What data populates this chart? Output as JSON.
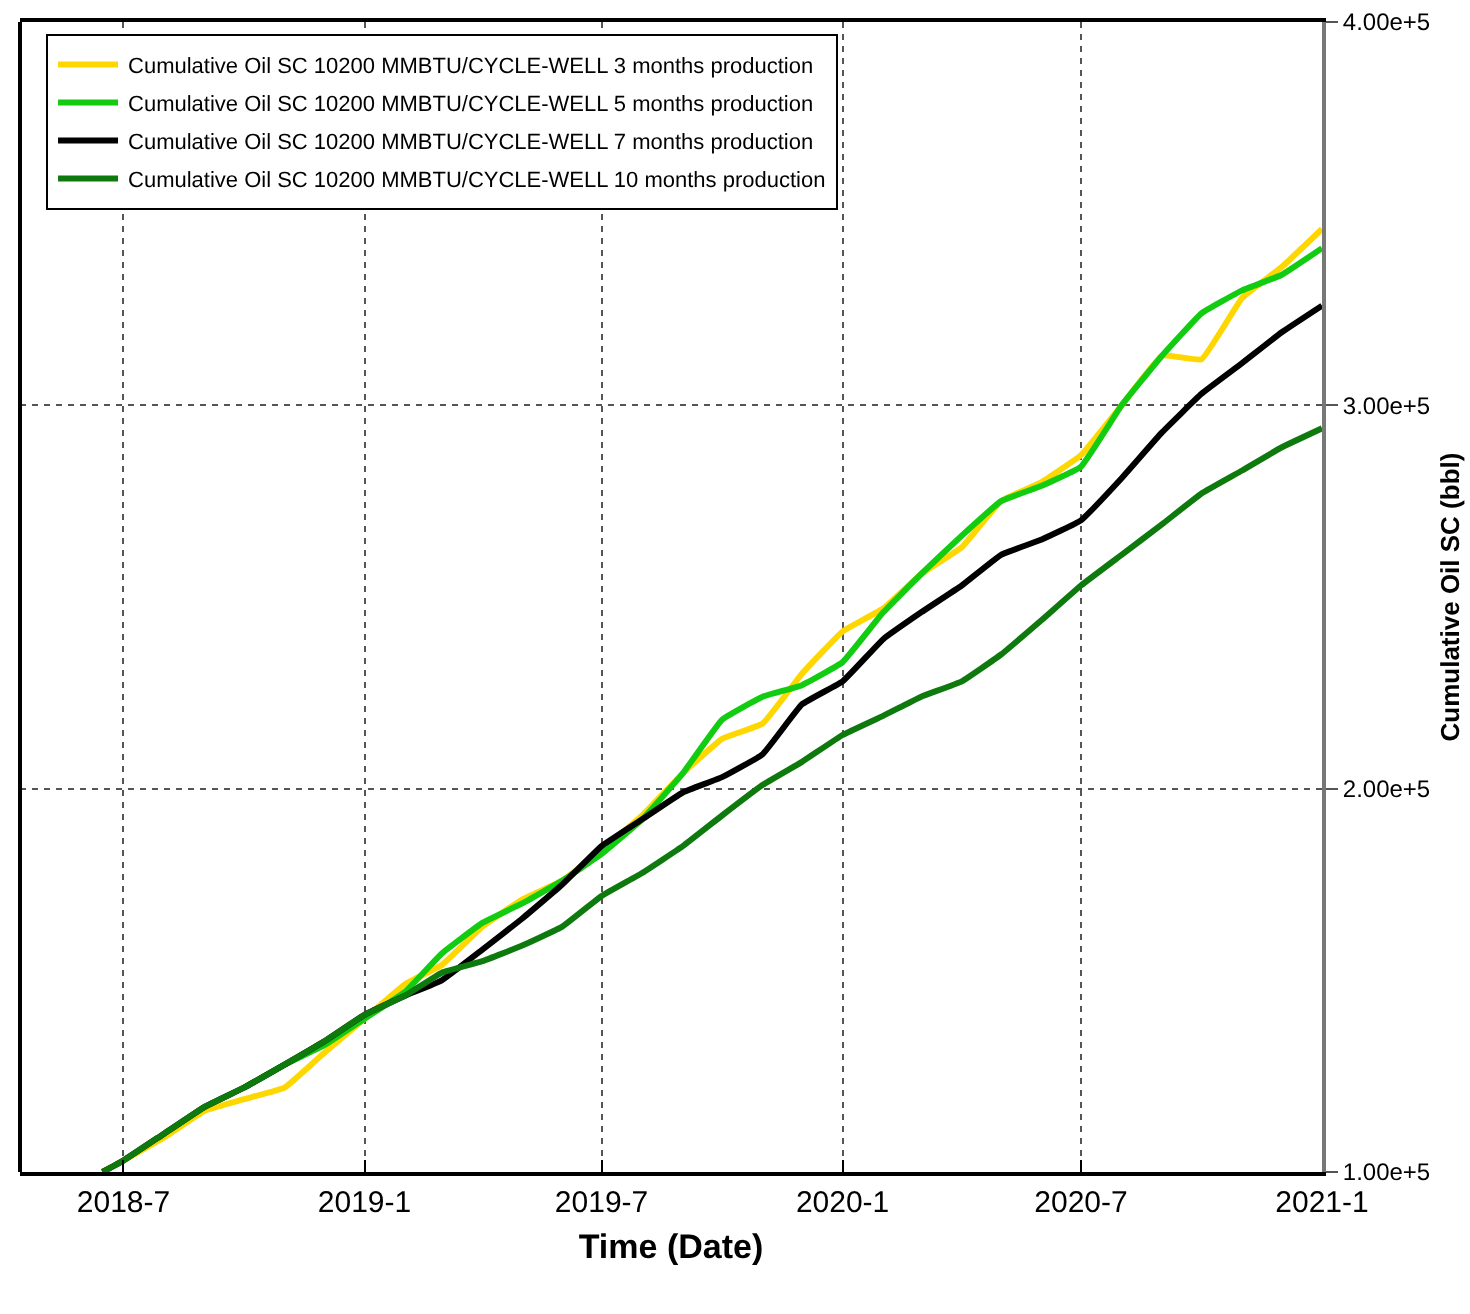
{
  "chart_data": {
    "type": "line",
    "xlabel": "Time (Date)",
    "ylabel": "Cumulative Oil SC (bbl)",
    "x": [
      "2018-06-15",
      "2018-07-01",
      "2018-08-01",
      "2018-09-01",
      "2018-10-01",
      "2018-11-01",
      "2018-12-01",
      "2019-01-01",
      "2019-02-01",
      "2019-03-01",
      "2019-04-01",
      "2019-05-01",
      "2019-06-01",
      "2019-07-01",
      "2019-08-01",
      "2019-09-01",
      "2019-10-01",
      "2019-11-01",
      "2019-12-01",
      "2020-01-01",
      "2020-02-01",
      "2020-03-01",
      "2020-04-01",
      "2020-05-01",
      "2020-06-01",
      "2020-07-01",
      "2020-08-01",
      "2020-09-01",
      "2020-10-01",
      "2020-11-01",
      "2020-12-01",
      "2021-01-01"
    ],
    "series": [
      {
        "name": "Cumulative Oil SC 10200 MMBTU/CYCLE-WELL 3 months production",
        "color": "#ffd700",
        "values": [
          100000,
          103000,
          109000,
          116000,
          119000,
          122000,
          131000,
          140000,
          149000,
          154000,
          164000,
          171000,
          176000,
          184000,
          193000,
          204000,
          213000,
          217000,
          230000,
          241000,
          247000,
          256000,
          263000,
          275000,
          280000,
          287000,
          300000,
          313000,
          312000,
          328000,
          336000,
          346000
        ]
      },
      {
        "name": "Cumulative Oil SC 10200 MMBTU/CYCLE-WELL 5 months production",
        "color": "#11cc11",
        "values": [
          null,
          null,
          null,
          null,
          122000,
          128000,
          133000,
          140000,
          147000,
          157000,
          165000,
          170000,
          176000,
          183000,
          192000,
          204000,
          218000,
          224000,
          227000,
          233000,
          246000,
          256000,
          266000,
          275000,
          279000,
          284000,
          300000,
          313000,
          324000,
          330000,
          334000,
          341000
        ]
      },
      {
        "name": "Cumulative Oil SC 10200 MMBTU/CYCLE-WELL 7 months production",
        "color": "#000000",
        "values": [
          100000,
          103000,
          110000,
          117000,
          122000,
          128000,
          134000,
          141000,
          146000,
          150000,
          158000,
          166000,
          175000,
          185000,
          192000,
          199000,
          203000,
          209000,
          222000,
          228000,
          239000,
          246000,
          253000,
          261000,
          265000,
          270000,
          281000,
          293000,
          303000,
          311000,
          319000,
          326000
        ]
      },
      {
        "name": "Cumulative Oil SC 10200 MMBTU/CYCLE-WELL 10 months production",
        "color": "#0e7a0e",
        "values": [
          100000,
          103000,
          110000,
          117000,
          122000,
          128000,
          134000,
          141000,
          146000,
          152000,
          155000,
          159000,
          164000,
          172000,
          178000,
          185000,
          193000,
          201000,
          207000,
          214000,
          219000,
          224000,
          228000,
          235000,
          244000,
          253000,
          261000,
          269000,
          277000,
          283000,
          289000,
          294000
        ]
      }
    ],
    "xlim": [
      "2018-04-13",
      "2021-01-01"
    ],
    "xticks": [
      {
        "value": "2018-07-01",
        "label": "2018-7"
      },
      {
        "value": "2019-01-01",
        "label": "2019-1"
      },
      {
        "value": "2019-07-01",
        "label": "2019-7"
      },
      {
        "value": "2020-01-01",
        "label": "2020-1"
      },
      {
        "value": "2020-07-01",
        "label": "2020-7"
      },
      {
        "value": "2021-01-01",
        "label": "2021-1"
      }
    ],
    "ylim": [
      100000,
      400000
    ],
    "yticks": [
      {
        "value": 100000,
        "label": "1.00e+5"
      },
      {
        "value": 200000,
        "label": "2.00e+5"
      },
      {
        "value": 300000,
        "label": "3.00e+5"
      },
      {
        "value": 400000,
        "label": "4.00e+5"
      }
    ],
    "grid": true,
    "legend": "top left",
    "marker": "none",
    "line_style": "solid"
  }
}
